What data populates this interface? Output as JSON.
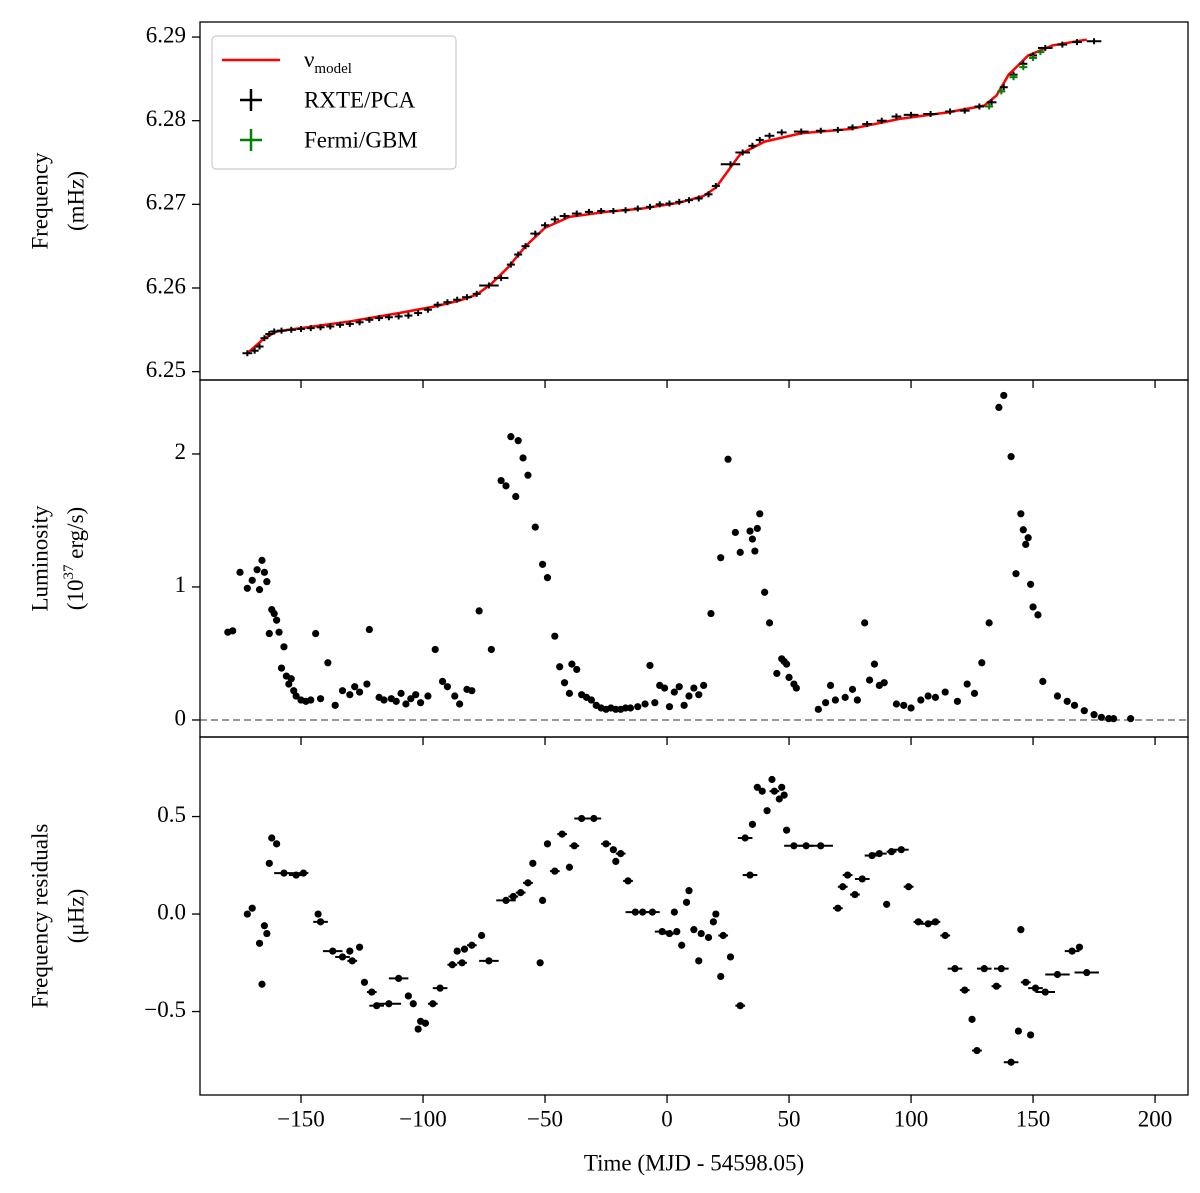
{
  "chart_data": [
    {
      "type": "line",
      "ylabel": [
        "Frequency",
        "(mHz)"
      ],
      "xlim": [
        -191.4,
        213.5
      ],
      "ylim": [
        6.249,
        6.2918
      ],
      "yticks": [
        6.25,
        6.26,
        6.27,
        6.28,
        6.29
      ],
      "legend": "upper left",
      "series": [
        {
          "name": {
            "base": "ν",
            "sub": "model"
          },
          "color": "#ff0000",
          "mark": "line",
          "x": [
            -172,
            -165,
            -160,
            -150,
            -130,
            -110,
            -95,
            -85,
            -78,
            -72,
            -65,
            -58,
            -50,
            -40,
            -25,
            -10,
            5,
            15,
            20,
            25,
            30,
            40,
            55,
            75,
            95,
            115,
            130,
            135,
            140,
            148,
            158,
            172
          ],
          "values": [
            6.2522,
            6.254,
            6.2548,
            6.2552,
            6.256,
            6.257,
            6.2578,
            6.2585,
            6.2592,
            6.2605,
            6.2625,
            6.265,
            6.2672,
            6.2685,
            6.2691,
            6.2695,
            6.2702,
            6.271,
            6.272,
            6.274,
            6.276,
            6.2775,
            6.2785,
            6.279,
            6.2802,
            6.281,
            6.2818,
            6.283,
            6.2855,
            6.2878,
            6.289,
            6.2897
          ]
        },
        {
          "name": "RXTE/PCA",
          "color": "#000000",
          "mark": "errorbar",
          "x": [
            -172,
            -169,
            -167,
            -165,
            -163,
            -161,
            -158,
            -154,
            -150,
            -146,
            -142,
            -138,
            -134,
            -130,
            -126,
            -122,
            -118,
            -114,
            -110,
            -106,
            -102,
            -98,
            -94,
            -90,
            -86,
            -82,
            -78,
            -73,
            -68,
            -64,
            -61,
            -58,
            -54,
            -50,
            -46,
            -42,
            -37,
            -32,
            -27,
            -22,
            -17,
            -12,
            -7,
            -3,
            1,
            5,
            9,
            13,
            17,
            20,
            26,
            31,
            35,
            38,
            42,
            47,
            55,
            63,
            70,
            76,
            82,
            88,
            94,
            100,
            108,
            116,
            122,
            128,
            133,
            138,
            142,
            146,
            150,
            155,
            162,
            168,
            175
          ],
          "values": [
            6.2522,
            6.2525,
            6.253,
            6.254,
            6.2545,
            6.2548,
            6.2549,
            6.255,
            6.2551,
            6.2552,
            6.2553,
            6.2554,
            6.2556,
            6.2557,
            6.2559,
            6.2562,
            6.2564,
            6.2565,
            6.2566,
            6.2567,
            6.257,
            6.2574,
            6.258,
            6.2583,
            6.2586,
            6.2589,
            6.2593,
            6.2603,
            6.2612,
            6.2628,
            6.264,
            6.265,
            6.2665,
            6.2675,
            6.2682,
            6.2686,
            6.2689,
            6.2691,
            6.2692,
            6.2692,
            6.2693,
            6.2695,
            6.2697,
            6.27,
            6.2701,
            6.2703,
            6.2705,
            6.2707,
            6.2712,
            6.2722,
            6.2748,
            6.2762,
            6.277,
            6.2777,
            6.2782,
            6.2786,
            6.2787,
            6.2788,
            6.2789,
            6.2792,
            6.2796,
            6.28,
            6.2805,
            6.2807,
            6.2808,
            6.2811,
            6.2812,
            6.2817,
            6.2822,
            6.284,
            6.2855,
            6.2868,
            6.2878,
            6.2887,
            6.2891,
            6.2894,
            6.2895
          ],
          "xerr": [
            2,
            1,
            1,
            1,
            1,
            1,
            2,
            2,
            1,
            1,
            1,
            1,
            1,
            1,
            1,
            1,
            1,
            1,
            1,
            1,
            1,
            1,
            1,
            1,
            1,
            2,
            1,
            4,
            3,
            1,
            1,
            1,
            2,
            1,
            1,
            2,
            2,
            1,
            1,
            1,
            1,
            1,
            1,
            1,
            1,
            1,
            1,
            1,
            1,
            1,
            4,
            3,
            1,
            1,
            2,
            2,
            3,
            2,
            2,
            2,
            2,
            2,
            2,
            3,
            3,
            2,
            2,
            2,
            2,
            1,
            1,
            1,
            1,
            3,
            2,
            2,
            3
          ]
        },
        {
          "name": "Fermi/GBM",
          "color": "#008000",
          "mark": "errorbar",
          "x": [
            132,
            137,
            142,
            146,
            150,
            153
          ],
          "values": [
            6.2817,
            6.2835,
            6.2852,
            6.2864,
            6.2875,
            6.2882
          ],
          "xerr": [
            1,
            1,
            1,
            1,
            1,
            1
          ]
        }
      ]
    },
    {
      "type": "scatter",
      "ylabel": [
        "Luminosity",
        {
          "base": "(10",
          "sup": "37",
          "rest": " erg/s)"
        }
      ],
      "xlim": [
        -191.4,
        213.5
      ],
      "ylim": [
        -0.128,
        2.556
      ],
      "yticks": [
        0,
        1,
        2
      ],
      "hline": 0,
      "color": "#000000",
      "x": [
        -180,
        -178,
        -175,
        -172,
        -170,
        -168,
        -167,
        -166,
        -165,
        -164,
        -163,
        -162,
        -161,
        -160,
        -159,
        -158,
        -157,
        -156,
        -155,
        -154,
        -153,
        -152,
        -150,
        -148,
        -146,
        -144,
        -142,
        -139,
        -136,
        -133,
        -130,
        -128,
        -126,
        -123,
        -122,
        -118,
        -116,
        -113,
        -111,
        -109,
        -107,
        -105,
        -103,
        -101,
        -98,
        -95,
        -92,
        -90,
        -87,
        -85,
        -82,
        -80,
        -77,
        -72,
        -68,
        -66,
        -64,
        -62,
        -61,
        -59,
        -57,
        -54,
        -51,
        -49,
        -46,
        -44,
        -42,
        -40,
        -39,
        -37,
        -35,
        -33,
        -31,
        -29,
        -27,
        -25,
        -23,
        -21,
        -19,
        -17,
        -15,
        -12,
        -9,
        -7,
        -5,
        -3,
        -1,
        1,
        3,
        5,
        7,
        9,
        11,
        13,
        15,
        18,
        22,
        25,
        28,
        30,
        34,
        35,
        36,
        37,
        38,
        40,
        42,
        45,
        47,
        48,
        49,
        50,
        52,
        53,
        62,
        65,
        67,
        69,
        73,
        76,
        78,
        81,
        83,
        85,
        87,
        89,
        94,
        97,
        100,
        104,
        107,
        110,
        114,
        119,
        123,
        126,
        129,
        132,
        136,
        138,
        141,
        143,
        145,
        146,
        147,
        148,
        149,
        150,
        152,
        154,
        160,
        164,
        167,
        171,
        175,
        178,
        181,
        183,
        190
      ],
      "values": [
        0.66,
        0.67,
        1.11,
        0.99,
        1.05,
        1.13,
        0.98,
        1.2,
        1.11,
        1.04,
        0.65,
        0.83,
        0.8,
        0.75,
        0.66,
        0.39,
        0.55,
        0.33,
        0.27,
        0.31,
        0.22,
        0.18,
        0.15,
        0.14,
        0.15,
        0.65,
        0.16,
        0.43,
        0.11,
        0.22,
        0.19,
        0.25,
        0.21,
        0.27,
        0.68,
        0.17,
        0.15,
        0.16,
        0.14,
        0.2,
        0.12,
        0.16,
        0.19,
        0.13,
        0.18,
        0.53,
        0.29,
        0.25,
        0.18,
        0.12,
        0.23,
        0.22,
        0.82,
        0.53,
        1.8,
        1.76,
        2.13,
        1.68,
        2.1,
        1.97,
        1.84,
        1.45,
        1.17,
        1.07,
        0.63,
        0.4,
        0.28,
        0.2,
        0.42,
        0.38,
        0.19,
        0.17,
        0.15,
        0.11,
        0.09,
        0.08,
        0.09,
        0.08,
        0.08,
        0.09,
        0.09,
        0.1,
        0.12,
        0.41,
        0.13,
        0.26,
        0.24,
        0.1,
        0.21,
        0.25,
        0.11,
        0.18,
        0.24,
        0.19,
        0.26,
        0.8,
        1.22,
        1.96,
        1.41,
        1.26,
        1.42,
        1.36,
        1.27,
        1.44,
        1.55,
        0.96,
        0.73,
        0.35,
        0.46,
        0.44,
        0.42,
        0.32,
        0.27,
        0.24,
        0.08,
        0.13,
        0.26,
        0.15,
        0.17,
        0.23,
        0.15,
        0.73,
        0.3,
        0.42,
        0.26,
        0.28,
        0.12,
        0.11,
        0.09,
        0.15,
        0.18,
        0.17,
        0.21,
        0.14,
        0.27,
        0.2,
        0.43,
        0.73,
        2.35,
        2.44,
        1.98,
        1.1,
        1.55,
        1.43,
        1.32,
        1.37,
        1.02,
        0.85,
        0.79,
        0.29,
        0.18,
        0.14,
        0.11,
        0.07,
        0.04,
        0.02,
        0.01,
        0.01,
        0.01
      ]
    },
    {
      "type": "scatter",
      "ylabel": [
        "Frequency residuals",
        "(μHz)"
      ],
      "xlabel": "Time (MJD - 54598.05)",
      "xlim": [
        -191.4,
        213.5
      ],
      "ylim": [
        -0.928,
        0.908
      ],
      "xticks": [
        {
          "value": -150,
          "label": "−150"
        },
        {
          "value": -100,
          "label": "−100"
        },
        {
          "value": -50,
          "label": "−50"
        },
        0,
        50,
        100,
        150,
        200
      ],
      "yticks": [
        {
          "value": -0.5,
          "label": "−0.5"
        },
        {
          "value": 0,
          "label": "0.0"
        },
        0.5
      ],
      "color": "#000000",
      "x": [
        -172,
        -170,
        -167,
        -166,
        -165,
        -164,
        -163,
        -162,
        -160,
        -157,
        -152,
        -149,
        -143,
        -142,
        -137,
        -133,
        -130,
        -129,
        -126,
        -124,
        -121,
        -119,
        -114,
        -110,
        -106,
        -104,
        -102,
        -101,
        -99,
        -96,
        -93,
        -88,
        -86,
        -84,
        -83,
        -80,
        -76,
        -73,
        -66,
        -63,
        -60,
        -57,
        -55,
        -52,
        -51,
        -49,
        -46,
        -43,
        -40,
        -38,
        -35,
        -30,
        -25,
        -22,
        -21,
        -19,
        -16,
        -13,
        -10,
        -6,
        -2,
        1,
        3,
        4,
        6,
        8,
        9,
        11,
        13,
        14,
        17,
        19,
        20,
        22,
        23,
        26,
        30,
        34,
        32,
        35,
        37,
        39,
        41,
        43,
        44,
        46,
        47,
        48,
        49,
        52,
        57,
        63,
        70,
        72,
        74,
        77,
        80,
        84,
        87,
        90,
        92,
        96,
        99,
        103,
        107,
        110,
        114,
        118,
        122,
        125,
        127,
        130,
        135,
        137,
        141,
        144,
        145,
        147,
        149,
        151,
        155,
        160,
        166,
        169,
        172
      ],
      "values": [
        0,
        0.03,
        -0.15,
        -0.36,
        -0.06,
        -0.1,
        0.26,
        0.39,
        0.36,
        0.21,
        0.2,
        0.21,
        0,
        -0.04,
        -0.19,
        -0.22,
        -0.19,
        -0.24,
        -0.17,
        -0.35,
        -0.4,
        -0.47,
        -0.46,
        -0.33,
        -0.42,
        -0.46,
        -0.59,
        -0.55,
        -0.56,
        -0.46,
        -0.38,
        -0.26,
        -0.19,
        -0.25,
        -0.18,
        -0.16,
        -0.11,
        -0.24,
        0.07,
        0.09,
        0.11,
        0.16,
        0.26,
        -0.25,
        0.07,
        0.36,
        0.22,
        0.41,
        0.24,
        0.35,
        0.49,
        0.49,
        0.36,
        0.33,
        0.27,
        0.31,
        0.17,
        0.01,
        0.01,
        0.01,
        -0.09,
        -0.1,
        0.01,
        -0.09,
        -0.16,
        0.06,
        0.12,
        -0.08,
        -0.24,
        -0.1,
        -0.12,
        -0.04,
        0,
        -0.32,
        -0.11,
        -0.22,
        -0.47,
        0.2,
        0.39,
        0.46,
        0.65,
        0.63,
        0.53,
        0.69,
        0.63,
        0.59,
        0.65,
        0.61,
        0.43,
        0.35,
        0.35,
        0.35,
        0.03,
        0.14,
        0.2,
        0.1,
        0.18,
        0.3,
        0.31,
        0.05,
        0.32,
        0.33,
        0.14,
        -0.04,
        -0.05,
        -0.04,
        -0.11,
        -0.28,
        -0.39,
        -0.54,
        -0.7,
        -0.28,
        -0.37,
        -0.28,
        -0.76,
        -0.6,
        -0.08,
        -0.35,
        -0.62,
        -0.38,
        -0.4,
        -0.31,
        -0.19,
        -0.17,
        -0.3
      ],
      "xerr": [
        1,
        1,
        1,
        1,
        1,
        1,
        1,
        1,
        1,
        4,
        3,
        2,
        1,
        3,
        4,
        3,
        1,
        2,
        1,
        1,
        2,
        3,
        5,
        4,
        1,
        1,
        1,
        1,
        1,
        2,
        3,
        2,
        1,
        2,
        1,
        2,
        1,
        4,
        4,
        2,
        2,
        2,
        1,
        1,
        1,
        1,
        2,
        2,
        1,
        2,
        3,
        3,
        2,
        1,
        1,
        2,
        2,
        4,
        4,
        3,
        3,
        3,
        1,
        1,
        1,
        1,
        1,
        1,
        1,
        1,
        1,
        1,
        1,
        1,
        2,
        1,
        2,
        3,
        3,
        1,
        1,
        1,
        1,
        1,
        2,
        1,
        1,
        1,
        1,
        4,
        3,
        5,
        2,
        2,
        2,
        2,
        3,
        3,
        3,
        1,
        2,
        3,
        2,
        2,
        3,
        2,
        2,
        3,
        2,
        1,
        2,
        3,
        2,
        3,
        3,
        1,
        1,
        2,
        1,
        3,
        4,
        5,
        3,
        1,
        5
      ]
    }
  ]
}
